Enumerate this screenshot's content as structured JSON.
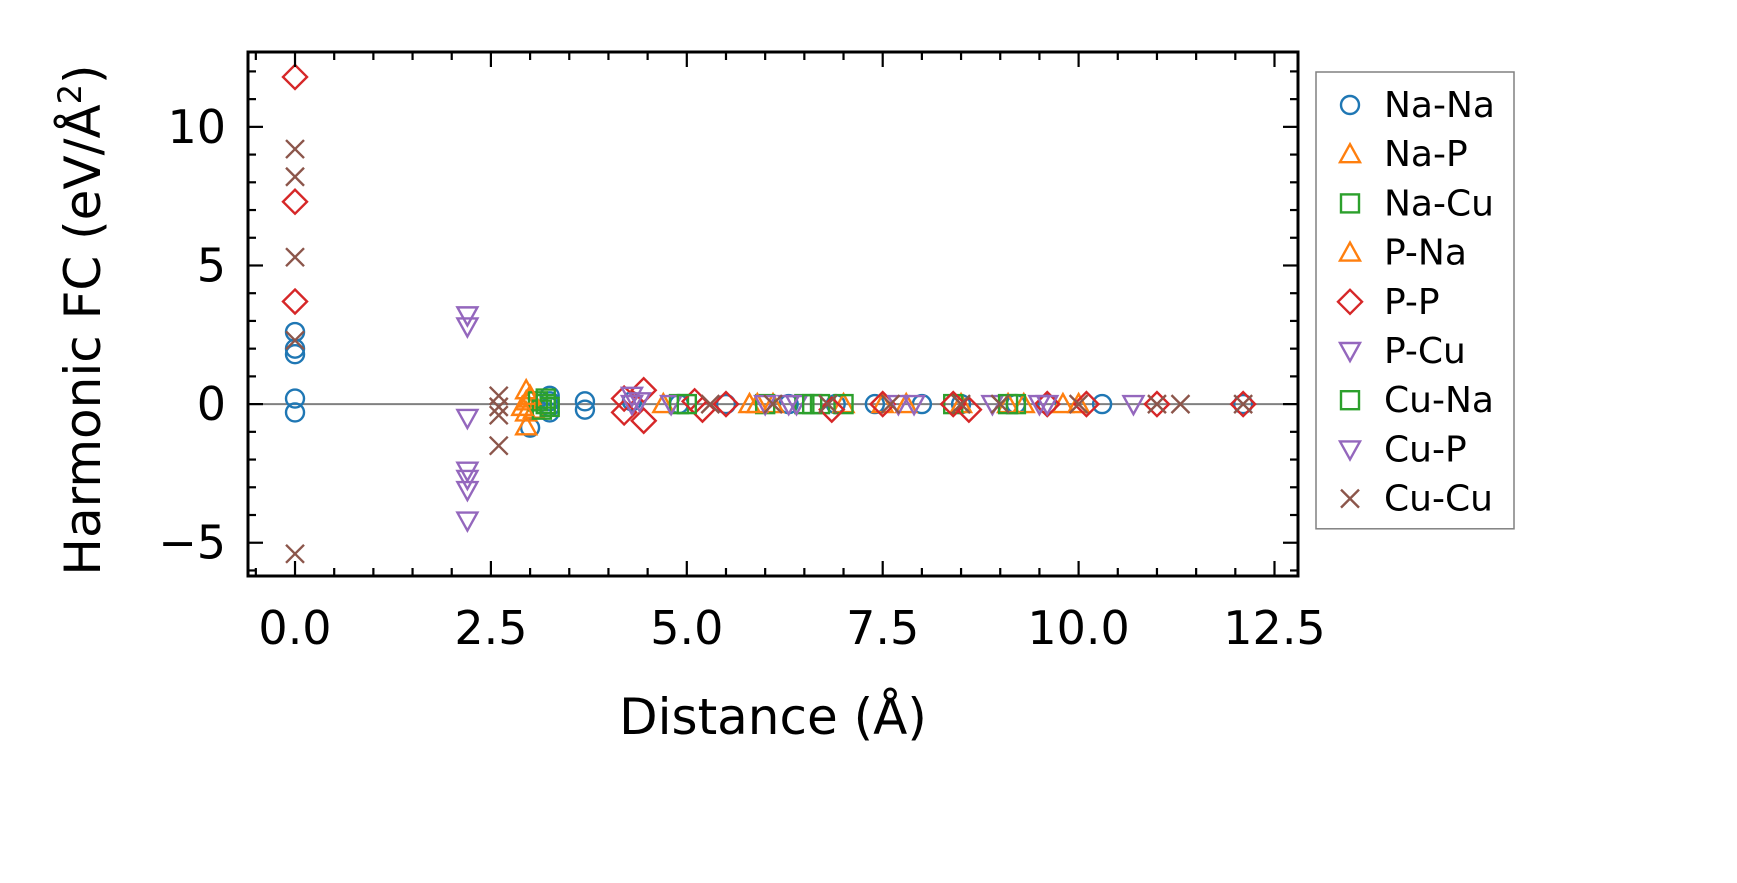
{
  "chart_data": {
    "type": "scatter",
    "title": "",
    "xlabel": "Distance (Å)",
    "ylabel": "Harmonic FC (eV/Å²)",
    "ylabel_parts": {
      "main": "Harmonic FC (eV/Å",
      "sup": "2",
      "end": ")"
    },
    "xlim": [
      -0.6,
      12.8
    ],
    "ylim": [
      -6.2,
      12.7
    ],
    "xticks": [
      0.0,
      2.5,
      5.0,
      7.5,
      10.0,
      12.5
    ],
    "xtick_labels": [
      "0.0",
      "2.5",
      "5.0",
      "7.5",
      "10.0",
      "12.5"
    ],
    "yticks": [
      -5,
      0,
      5,
      10
    ],
    "ytick_labels": [
      "−5",
      "0",
      "5",
      "10"
    ],
    "reference_line_y": 0,
    "legend_position": "right",
    "series": [
      {
        "name": "Na-Na",
        "marker": "circle",
        "color": "#1f77b4",
        "points": [
          [
            0,
            2.6
          ],
          [
            0,
            2.0
          ],
          [
            0,
            1.8
          ],
          [
            0,
            0.2
          ],
          [
            0,
            -0.3
          ],
          [
            3.0,
            -0.85
          ],
          [
            3.25,
            0.3
          ],
          [
            3.25,
            0.1
          ],
          [
            3.25,
            -0.1
          ],
          [
            3.25,
            -0.3
          ],
          [
            3.7,
            0.1
          ],
          [
            3.7,
            -0.2
          ],
          [
            4.3,
            0.1
          ],
          [
            4.9,
            0
          ],
          [
            5.5,
            0
          ],
          [
            6.3,
            0
          ],
          [
            6.9,
            0
          ],
          [
            7.4,
            0
          ],
          [
            8.0,
            0
          ],
          [
            8.5,
            0
          ],
          [
            9.2,
            0
          ],
          [
            9.6,
            0
          ],
          [
            10.3,
            0
          ],
          [
            12.1,
            0
          ]
        ]
      },
      {
        "name": "Na-P",
        "marker": "triangle-up",
        "color": "#ff7f0e",
        "points": [
          [
            2.95,
            0.5
          ],
          [
            2.95,
            0.1
          ],
          [
            2.95,
            -0.3
          ],
          [
            2.95,
            -0.8
          ],
          [
            3.0,
            0.2
          ],
          [
            3.05,
            -0.2
          ],
          [
            4.7,
            0
          ],
          [
            5.8,
            0
          ],
          [
            6.1,
            0
          ],
          [
            7.0,
            0
          ],
          [
            7.8,
            0
          ],
          [
            8.5,
            0
          ],
          [
            9.3,
            0
          ],
          [
            9.8,
            0
          ],
          [
            10.0,
            0
          ]
        ]
      },
      {
        "name": "Na-Cu",
        "marker": "square",
        "color": "#2ca02c",
        "points": [
          [
            3.1,
            0.1
          ],
          [
            3.15,
            -0.2
          ],
          [
            3.2,
            0.2
          ],
          [
            3.25,
            -0.1
          ],
          [
            4.9,
            0
          ],
          [
            6.0,
            0
          ],
          [
            6.5,
            0
          ],
          [
            6.7,
            0
          ],
          [
            7.0,
            0
          ],
          [
            8.4,
            0
          ],
          [
            9.2,
            0
          ]
        ]
      },
      {
        "name": "P-Na",
        "marker": "triangle-up",
        "color": "#ff7f0e",
        "points": [
          [
            2.9,
            -0.1
          ],
          [
            3.0,
            0.3
          ],
          [
            5.9,
            0
          ],
          [
            7.5,
            0
          ],
          [
            9.1,
            0
          ]
        ]
      },
      {
        "name": "P-P",
        "marker": "diamond",
        "color": "#d62728",
        "points": [
          [
            0,
            11.8
          ],
          [
            0,
            7.3
          ],
          [
            0,
            3.7
          ],
          [
            4.2,
            0.2
          ],
          [
            4.2,
            -0.3
          ],
          [
            4.45,
            0.5
          ],
          [
            4.45,
            -0.6
          ],
          [
            5.1,
            0.1
          ],
          [
            5.2,
            -0.2
          ],
          [
            5.5,
            0
          ],
          [
            6.85,
            -0.2
          ],
          [
            7.5,
            0
          ],
          [
            8.4,
            0
          ],
          [
            8.6,
            -0.2
          ],
          [
            9.6,
            0
          ],
          [
            10.1,
            0
          ],
          [
            11.0,
            0
          ],
          [
            12.1,
            0
          ]
        ]
      },
      {
        "name": "P-Cu",
        "marker": "triangle-down",
        "color": "#9467bd",
        "points": [
          [
            2.2,
            3.2
          ],
          [
            2.2,
            2.8
          ],
          [
            2.2,
            -0.5
          ],
          [
            2.2,
            -2.4
          ],
          [
            2.2,
            -2.7
          ],
          [
            2.2,
            -3.1
          ],
          [
            2.2,
            -4.2
          ],
          [
            4.3,
            0.3
          ],
          [
            4.3,
            0
          ],
          [
            4.8,
            0
          ],
          [
            6.0,
            0
          ],
          [
            6.4,
            0
          ],
          [
            7.9,
            0
          ],
          [
            8.9,
            0
          ],
          [
            9.6,
            0
          ],
          [
            10.7,
            0
          ]
        ]
      },
      {
        "name": "Cu-Na",
        "marker": "square",
        "color": "#2ca02c",
        "points": [
          [
            3.2,
            0
          ],
          [
            5.0,
            0
          ],
          [
            6.6,
            0
          ],
          [
            9.1,
            0
          ]
        ]
      },
      {
        "name": "Cu-P",
        "marker": "triangle-down",
        "color": "#9467bd",
        "points": [
          [
            4.4,
            0.1
          ],
          [
            6.3,
            0
          ],
          [
            7.7,
            0
          ],
          [
            9.5,
            0
          ]
        ]
      },
      {
        "name": "Cu-Cu",
        "marker": "x",
        "color": "#8c564b",
        "points": [
          [
            0,
            9.2
          ],
          [
            0,
            8.2
          ],
          [
            0,
            5.3
          ],
          [
            0,
            2.3
          ],
          [
            0,
            -5.4
          ],
          [
            2.6,
            0.3
          ],
          [
            2.6,
            -0.1
          ],
          [
            2.6,
            -0.4
          ],
          [
            2.6,
            -1.5
          ],
          [
            5.3,
            0
          ],
          [
            6.1,
            0
          ],
          [
            6.8,
            0
          ],
          [
            7.6,
            0
          ],
          [
            8.5,
            0
          ],
          [
            9.0,
            0
          ],
          [
            10.0,
            0
          ],
          [
            11.0,
            0
          ],
          [
            11.3,
            0
          ],
          [
            12.1,
            0
          ]
        ]
      }
    ]
  }
}
